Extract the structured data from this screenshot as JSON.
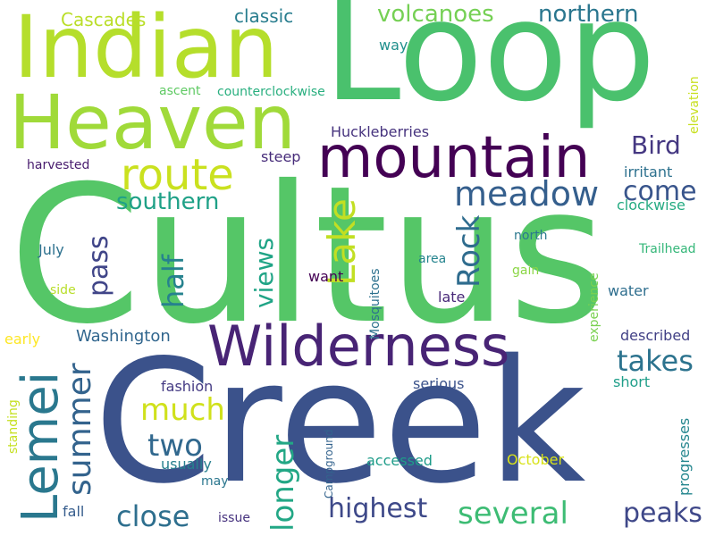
{
  "words": [
    {
      "text": "Cultus",
      "color": "#55c667"
    },
    {
      "text": "Creek",
      "color": "#3b528b"
    },
    {
      "text": "Loop",
      "color": "#4ac16d"
    },
    {
      "text": "Indian",
      "color": "#b5de2b"
    },
    {
      "text": "Heaven",
      "color": "#a0da39"
    },
    {
      "text": "Wilderness",
      "color": "#482475"
    },
    {
      "text": "mountain",
      "color": "#440154"
    },
    {
      "text": "Lemei",
      "color": "#2a788e"
    },
    {
      "text": "route",
      "color": "#cae11f"
    },
    {
      "text": "meadow",
      "color": "#355f8d"
    },
    {
      "text": "Lake",
      "color": "#c2df23"
    },
    {
      "text": "Rock",
      "color": "#2f6c8e"
    },
    {
      "text": "summer",
      "color": "#33638d"
    },
    {
      "text": "longer",
      "color": "#22a785"
    },
    {
      "text": "several",
      "color": "#3dbc74"
    },
    {
      "text": "two",
      "color": "#31688e"
    },
    {
      "text": "close",
      "color": "#2e6f8e"
    },
    {
      "text": "highest",
      "color": "#3e4989"
    },
    {
      "text": "peaks",
      "color": "#3f4889"
    },
    {
      "text": "much",
      "color": "#d0e11c"
    },
    {
      "text": "takes",
      "color": "#2c738e"
    },
    {
      "text": "views",
      "color": "#20a486"
    },
    {
      "text": "half",
      "color": "#26828e"
    },
    {
      "text": "pass",
      "color": "#404588"
    },
    {
      "text": "southern",
      "color": "#1fa187"
    },
    {
      "text": "come",
      "color": "#39558c"
    },
    {
      "text": "Bird",
      "color": "#453882"
    },
    {
      "text": "volcanoes",
      "color": "#75d054"
    },
    {
      "text": "northern",
      "color": "#2a768e"
    },
    {
      "text": "classic",
      "color": "#287d8e"
    },
    {
      "text": "Cascades",
      "color": "#bade28"
    },
    {
      "text": "Huckleberries",
      "color": "#46337e"
    },
    {
      "text": "way",
      "color": "#21908d"
    },
    {
      "text": "ascent",
      "color": "#5ec962"
    },
    {
      "text": "counterclockwise",
      "color": "#29af7f"
    },
    {
      "text": "elevation",
      "color": "#c8e020"
    },
    {
      "text": "harvested",
      "color": "#481c6e"
    },
    {
      "text": "steep",
      "color": "#472c7a"
    },
    {
      "text": "irritant",
      "color": "#2d718e"
    },
    {
      "text": "clockwise",
      "color": "#25ab82"
    },
    {
      "text": "July",
      "color": "#2d718e"
    },
    {
      "text": "north",
      "color": "#2a788e"
    },
    {
      "text": "Trailhead",
      "color": "#35b779"
    },
    {
      "text": "Mosquitoes",
      "color": "#2d718e"
    },
    {
      "text": "area",
      "color": "#25848e"
    },
    {
      "text": "gain",
      "color": "#8bd646"
    },
    {
      "text": "side",
      "color": "#b8de29"
    },
    {
      "text": "want",
      "color": "#440154"
    },
    {
      "text": "late",
      "color": "#482878"
    },
    {
      "text": "water",
      "color": "#2e6e8e"
    },
    {
      "text": "experience",
      "color": "#7ad151"
    },
    {
      "text": "early",
      "color": "#fde725"
    },
    {
      "text": "Washington",
      "color": "#31668e"
    },
    {
      "text": "described",
      "color": "#424186"
    },
    {
      "text": "fashion",
      "color": "#443a83"
    },
    {
      "text": "serious",
      "color": "#3b528b"
    },
    {
      "text": "short",
      "color": "#1f9e89"
    },
    {
      "text": "standing",
      "color": "#c5e021"
    },
    {
      "text": "progresses",
      "color": "#24868e"
    },
    {
      "text": "usually",
      "color": "#277f8e"
    },
    {
      "text": "Campground",
      "color": "#33638d"
    },
    {
      "text": "accessed",
      "color": "#1e9c89"
    },
    {
      "text": "October",
      "color": "#d8e219"
    },
    {
      "text": "may",
      "color": "#2a768e"
    },
    {
      "text": "fall",
      "color": "#365d8d"
    },
    {
      "text": "issue",
      "color": "#46327e"
    }
  ]
}
